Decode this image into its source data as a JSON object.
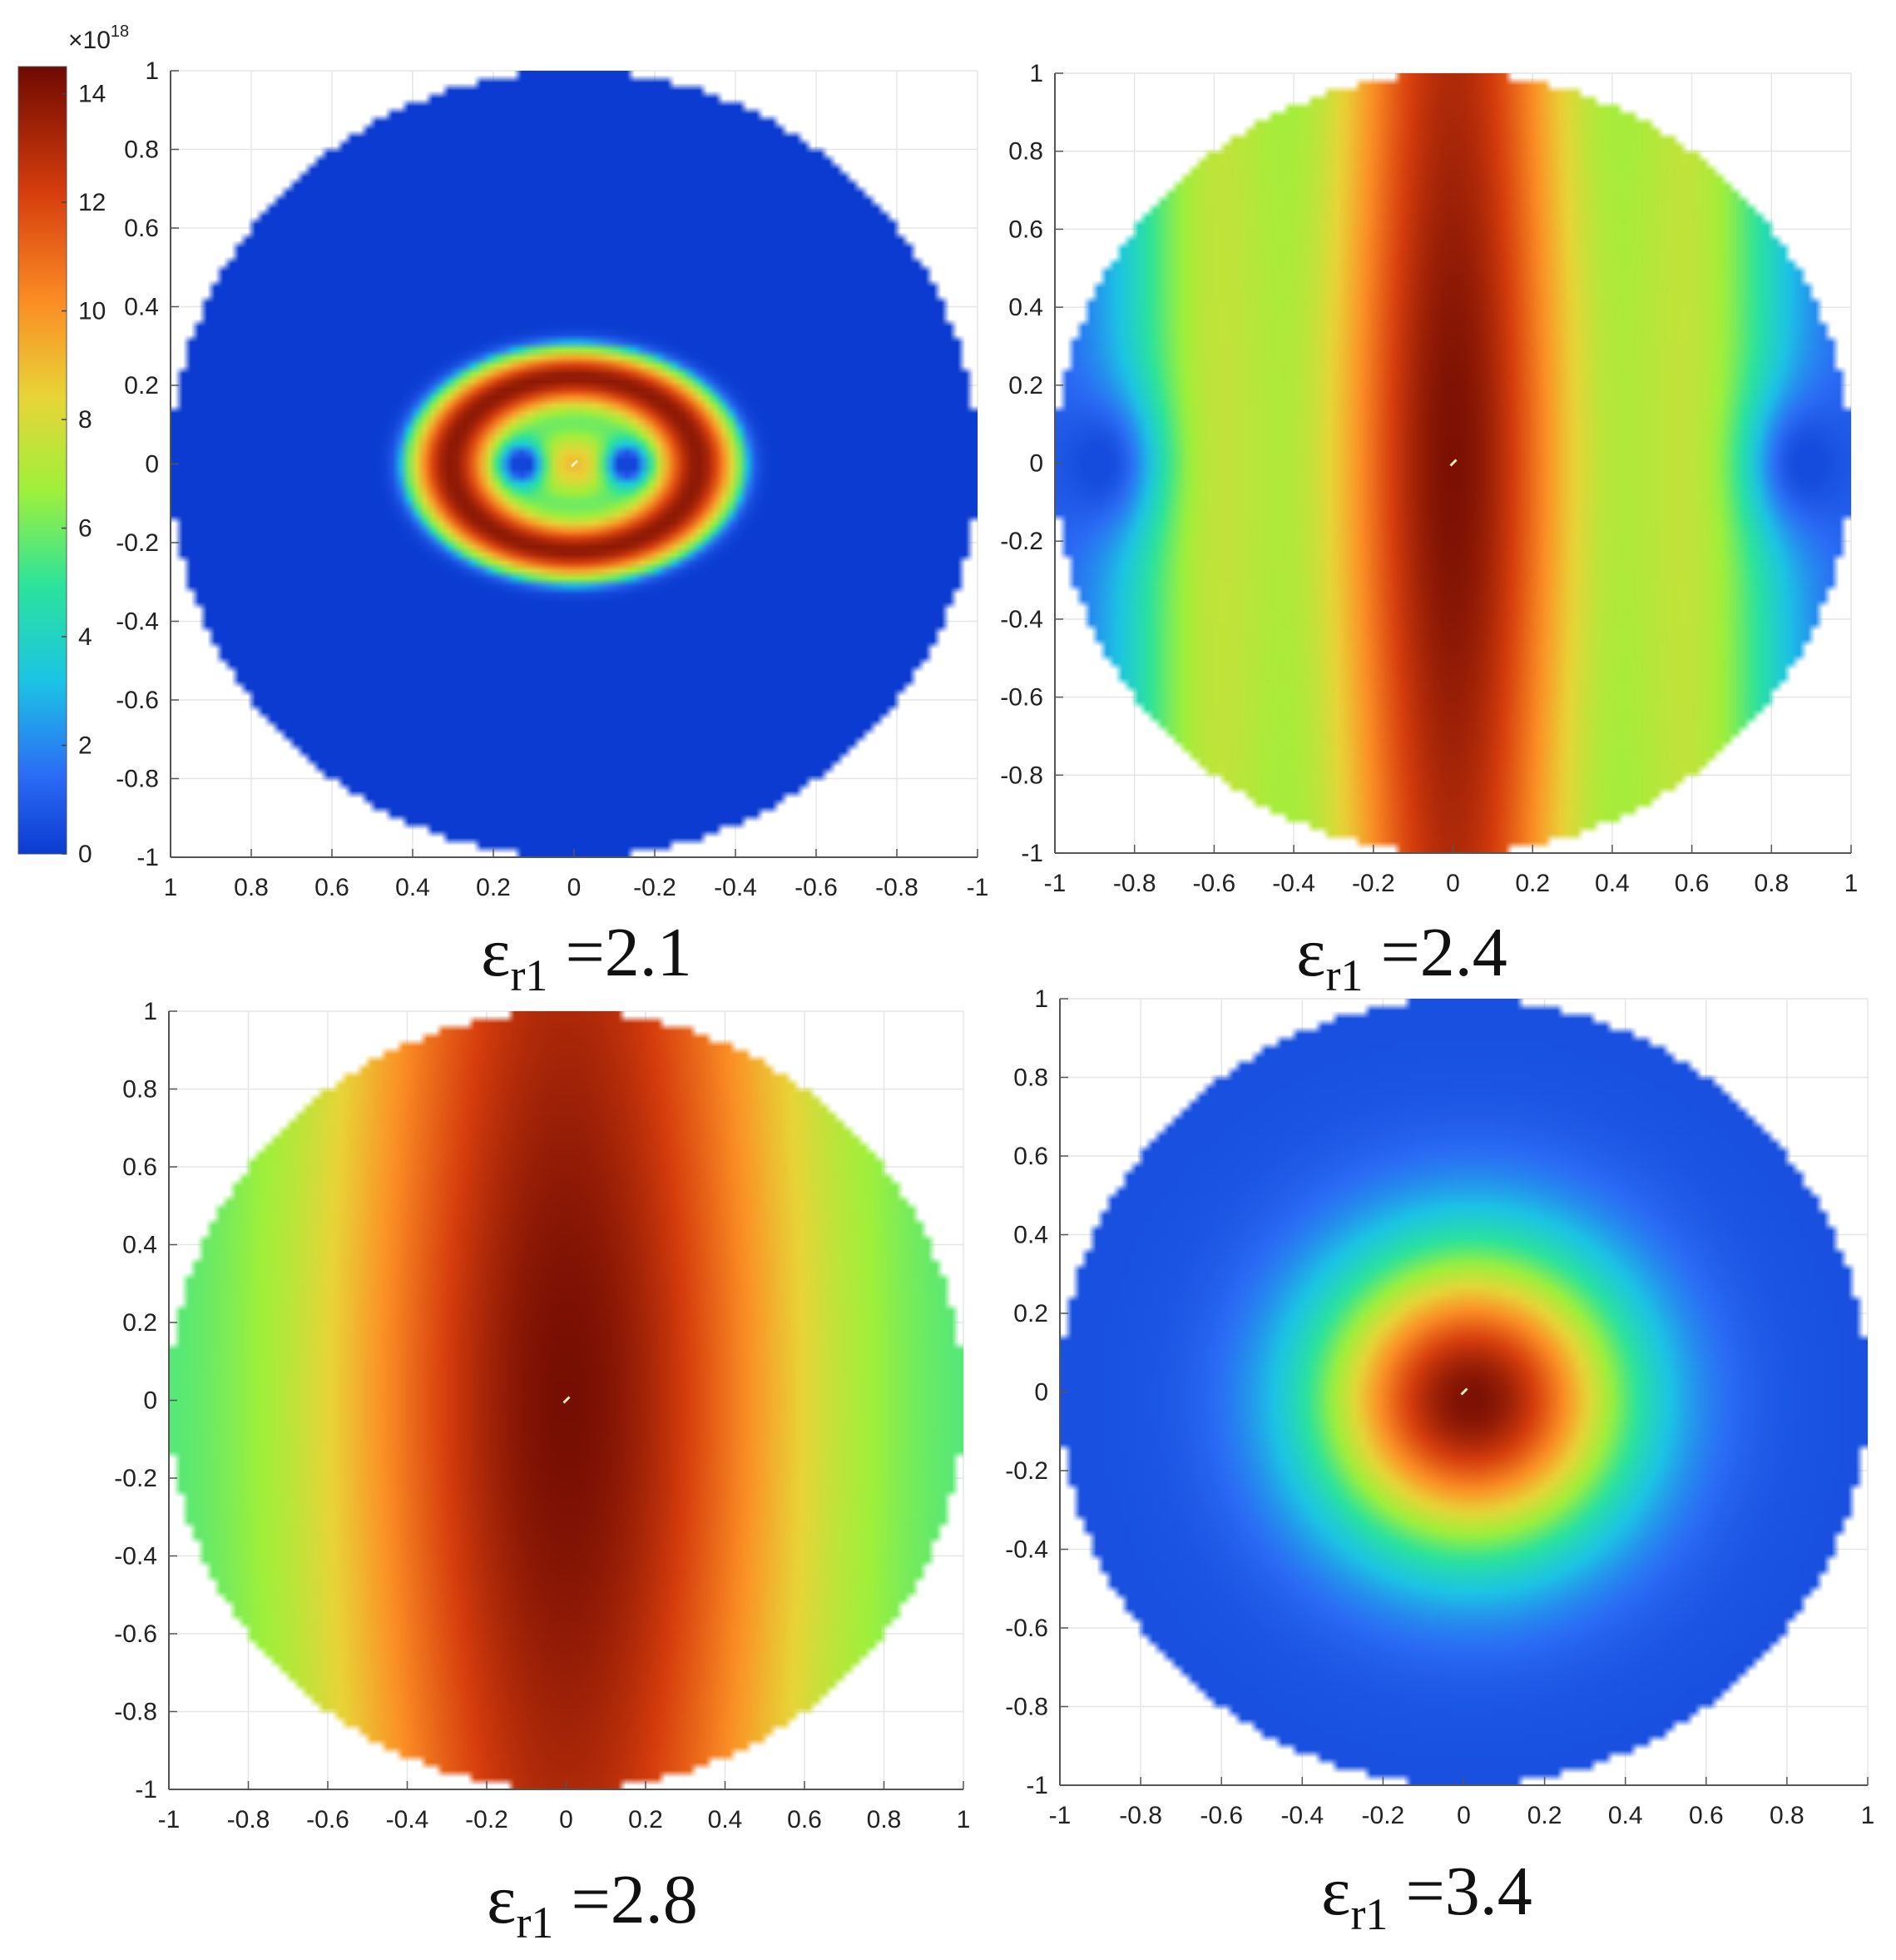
{
  "colorbar": {
    "multiplier_base": "×10",
    "multiplier_exponent": "18",
    "ticks": [
      0,
      2,
      4,
      6,
      8,
      10,
      12,
      14
    ],
    "min": 0,
    "max": 14.5,
    "colormap": "turbo"
  },
  "chart_data": [
    {
      "type": "heatmap",
      "caption": {
        "symbol": "ε",
        "subscript": "r1",
        "value": " =2.1"
      },
      "x_ticks": [
        "1",
        "0.8",
        "0.6",
        "0.4",
        "0.2",
        "0",
        "-0.2",
        "-0.4",
        "-0.6",
        "-0.8",
        "-1"
      ],
      "y_ticks": [
        "1",
        "0.8",
        "0.6",
        "0.4",
        "0.2",
        "0",
        "-0.2",
        "-0.4",
        "-0.6",
        "-0.8",
        "-1"
      ],
      "xlim": [
        1,
        -1
      ],
      "ylim": [
        -1,
        1
      ],
      "grid": true,
      "domain": "unit disk",
      "field": "hot ring (radius ≈0.4) around center with two cold spots at x=±0.13, background ≈0"
    },
    {
      "type": "heatmap",
      "caption": {
        "symbol": "ε",
        "subscript": "r1",
        "value": " =2.4"
      },
      "x_ticks": [
        "-1",
        "-0.8",
        "-0.6",
        "-0.4",
        "-0.2",
        "0",
        "0.2",
        "0.4",
        "0.6",
        "0.8",
        "1"
      ],
      "y_ticks": [
        "1",
        "0.8",
        "0.6",
        "0.4",
        "0.2",
        "0",
        "-0.2",
        "-0.4",
        "-0.6",
        "-0.8",
        "-1"
      ],
      "xlim": [
        -1,
        1
      ],
      "ylim": [
        -1,
        1
      ],
      "grid": true,
      "domain": "unit disk",
      "field": "maximum ≈14 at center, elongated vertically, minima ≈1 at x=±0.87"
    },
    {
      "type": "heatmap",
      "caption": {
        "symbol": "ε",
        "subscript": "r1",
        "value": " =2.8"
      },
      "x_ticks": [
        "-1",
        "-0.8",
        "-0.6",
        "-0.4",
        "-0.2",
        "0",
        "0.2",
        "0.4",
        "0.6",
        "0.8",
        "1"
      ],
      "y_ticks": [
        "1",
        "0.8",
        "0.6",
        "0.4",
        "0.2",
        "0",
        "-0.2",
        "-0.4",
        "-0.6",
        "-0.8",
        "-1"
      ],
      "xlim": [
        -1,
        1
      ],
      "ylim": [
        -1,
        1
      ],
      "grid": true,
      "domain": "unit disk",
      "field": "maximum ≈14 at center, ≈11 at top/bottom, ≈5 at left/right edge"
    },
    {
      "type": "heatmap",
      "caption": {
        "symbol": "ε",
        "subscript": "r1",
        "value": " =3.4"
      },
      "x_ticks": [
        "-1",
        "-0.8",
        "-0.6",
        "-0.4",
        "-0.2",
        "0",
        "0.2",
        "0.4",
        "0.6",
        "0.8",
        "1"
      ],
      "y_ticks": [
        "1",
        "0.8",
        "0.6",
        "0.4",
        "0.2",
        "0",
        "-0.2",
        "-0.4",
        "-0.6",
        "-0.8",
        "-1"
      ],
      "xlim": [
        -1,
        1
      ],
      "ylim": [
        -1,
        1
      ],
      "grid": true,
      "domain": "unit disk",
      "field": "radial peak ≈14 at center decaying to ≈1 at r≈0.7"
    }
  ]
}
